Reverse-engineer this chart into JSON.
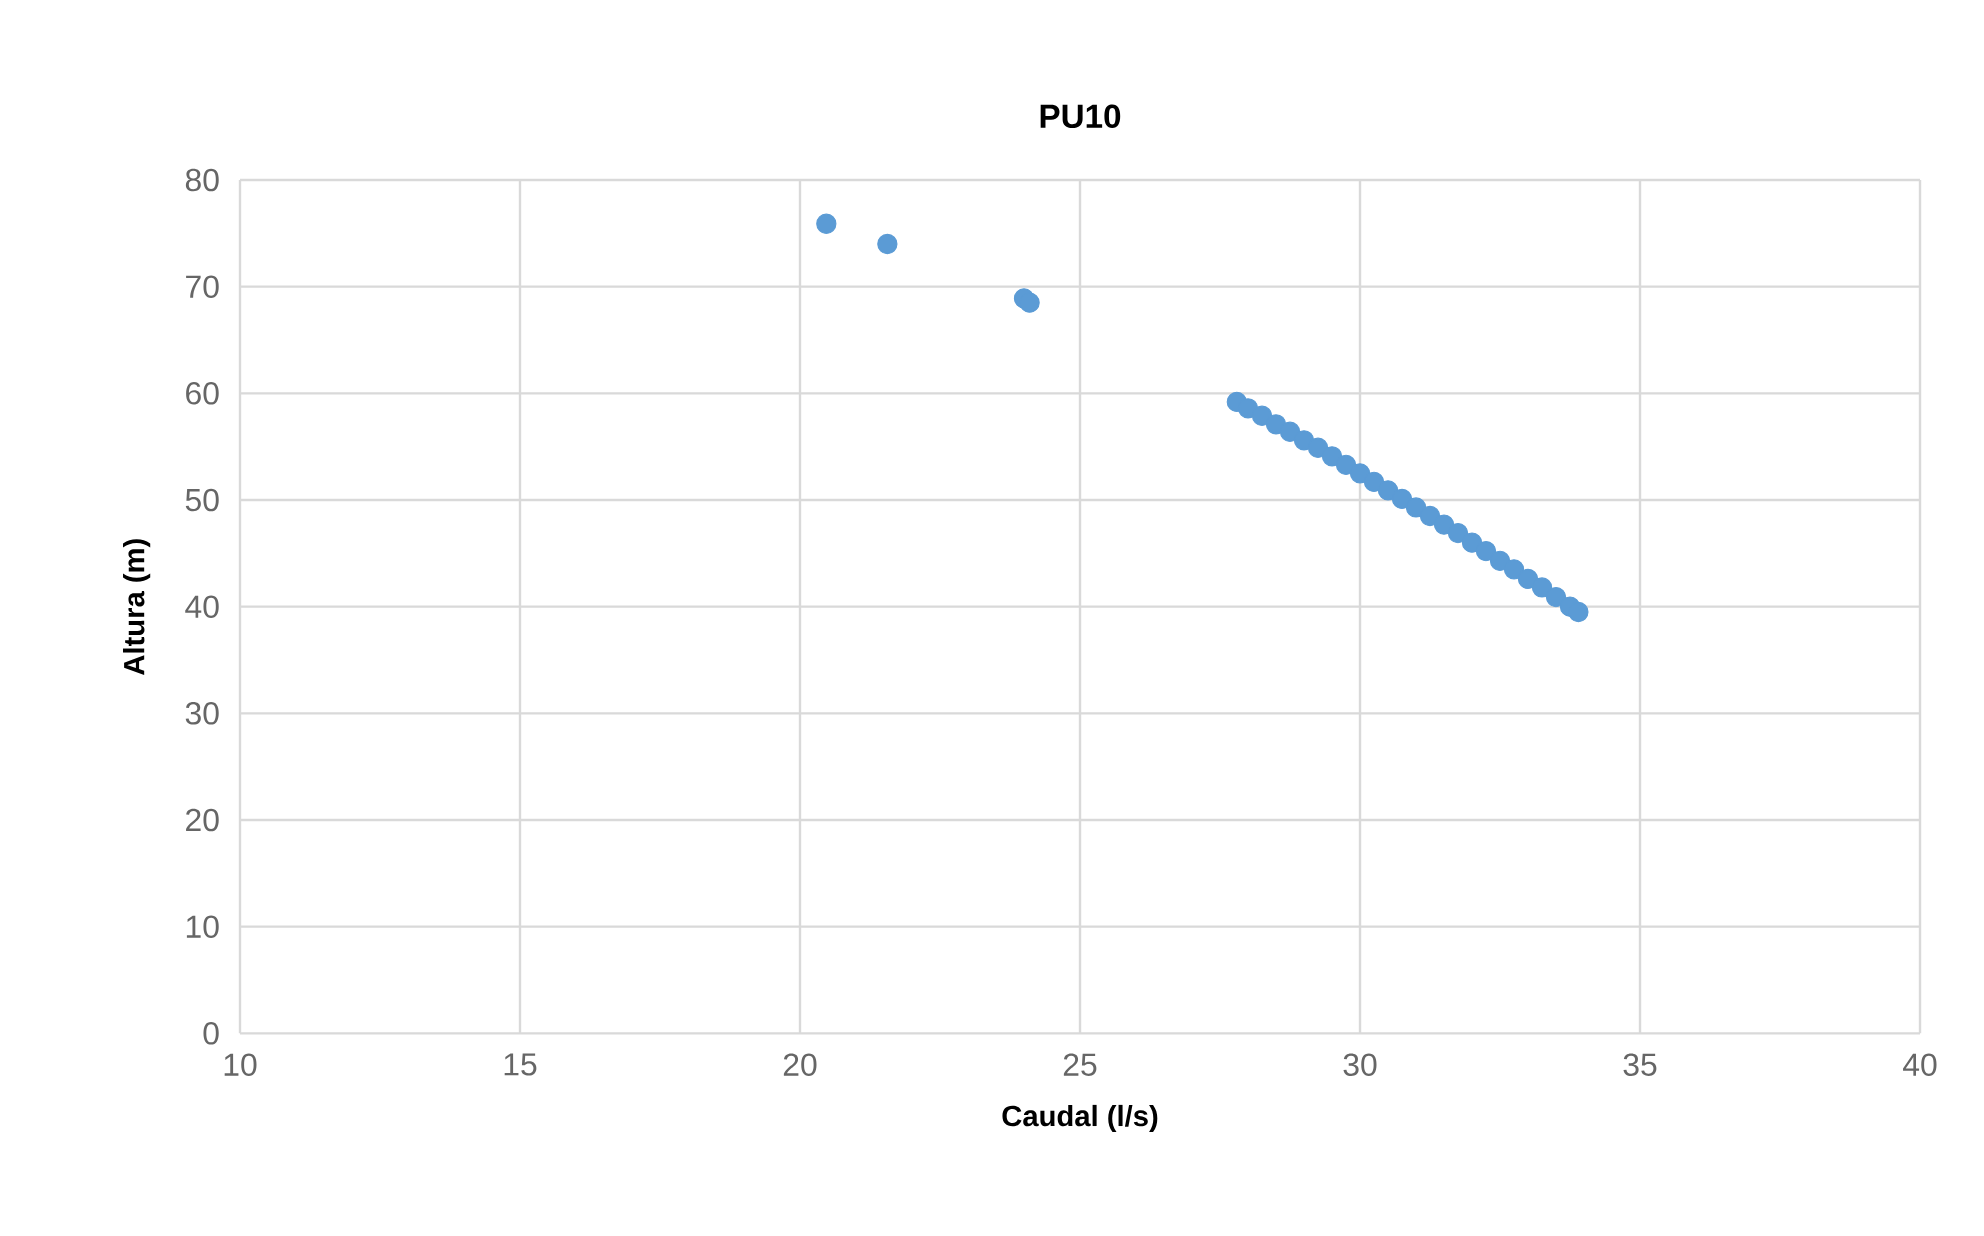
{
  "chart_data": {
    "type": "scatter",
    "title": "PU10",
    "xlabel": "Caudal (l/s)",
    "ylabel": "Altura (m)",
    "xlim": [
      10,
      40
    ],
    "xticks": [
      10,
      15,
      20,
      25,
      30,
      35,
      40
    ],
    "ylim": [
      0,
      80
    ],
    "yticks": [
      0,
      10,
      20,
      30,
      40,
      50,
      60,
      70,
      80
    ],
    "grid": true,
    "marker": "circle",
    "series": [
      {
        "color": "#5b9bd5",
        "x": [
          20.47,
          21.56,
          24.0,
          24.1,
          27.8,
          28.0,
          28.25,
          28.5,
          28.75,
          29.0,
          29.25,
          29.5,
          29.75,
          30.0,
          30.25,
          30.5,
          30.75,
          31.0,
          31.25,
          31.5,
          31.75,
          32.0,
          32.25,
          32.5,
          32.75,
          33.0,
          33.25,
          33.5,
          33.75,
          33.9
        ],
        "values": [
          75.9,
          74.0,
          68.9,
          68.5,
          59.2,
          58.6,
          57.9,
          57.1,
          56.4,
          55.6,
          54.9,
          54.1,
          53.3,
          52.5,
          51.7,
          50.9,
          50.1,
          49.3,
          48.5,
          47.7,
          46.9,
          46.0,
          45.2,
          44.3,
          43.5,
          42.6,
          41.8,
          40.9,
          40.0,
          39.5
        ]
      }
    ]
  }
}
